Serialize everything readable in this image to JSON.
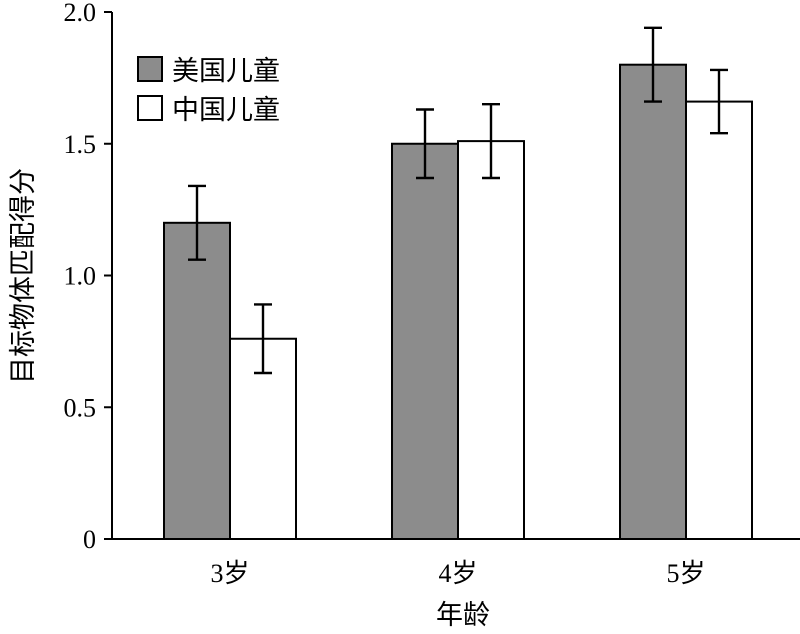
{
  "chart_data": {
    "type": "bar",
    "categories": [
      "3岁",
      "4岁",
      "5岁"
    ],
    "series": [
      {
        "name": "美国儿童",
        "values": [
          1.2,
          1.5,
          1.8
        ],
        "errors": [
          0.14,
          0.13,
          0.14
        ],
        "color": "#8c8c8c"
      },
      {
        "name": "中国儿童",
        "values": [
          0.76,
          1.51,
          1.66
        ],
        "errors": [
          0.13,
          0.14,
          0.12
        ],
        "color": "#ffffff"
      }
    ],
    "xlabel": "年龄",
    "ylabel": "目标物体匹配得分",
    "ylim": [
      0,
      2.0
    ],
    "yticks": [
      "0",
      "0.5",
      "1.0",
      "1.5",
      "2.0"
    ],
    "ytick_values": [
      0,
      0.5,
      1.0,
      1.5,
      2.0
    ],
    "legend_position": "top-left",
    "grid": false
  }
}
